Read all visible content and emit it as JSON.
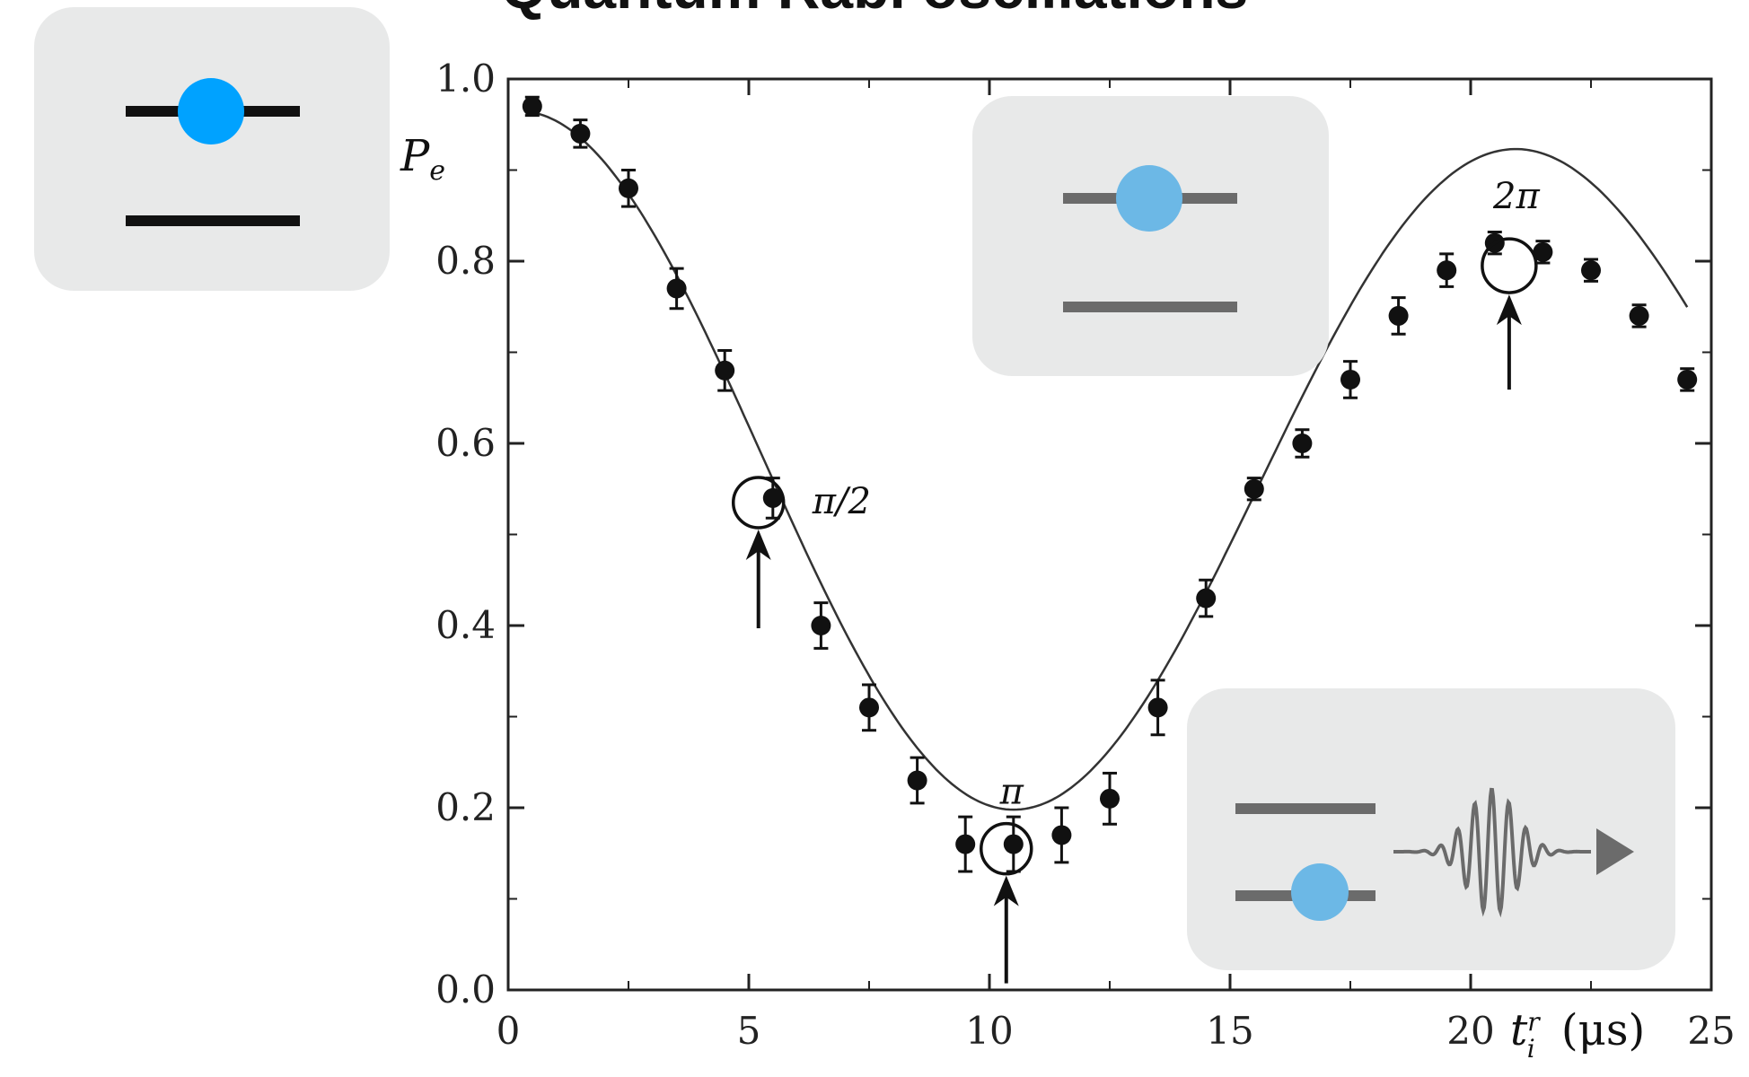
{
  "chart_data": {
    "type": "scatter",
    "title": "Quantum Rabi oscillations",
    "ylabel_main": "P",
    "ylabel_sub": "e",
    "xlabel_main": "t",
    "xlabel_sub": "i",
    "xlabel_sup": "r",
    "xlabel_unit": "(μs)",
    "xlim": [
      0,
      25
    ],
    "ylim": [
      0,
      1.0
    ],
    "x_ticks": [
      0,
      5,
      10,
      15,
      20,
      25
    ],
    "x_tick_labels": [
      "0",
      "5",
      "10",
      "15",
      "20",
      "25"
    ],
    "y_ticks": [
      0.0,
      0.2,
      0.4,
      0.6,
      0.8,
      1.0
    ],
    "y_tick_labels": [
      "0.0",
      "0.2",
      "0.4",
      "0.6",
      "0.8",
      "1.0"
    ],
    "series": [
      {
        "points": [
          {
            "x": 0.5,
            "y": 0.97,
            "err": 0.01
          },
          {
            "x": 1.5,
            "y": 0.94,
            "err": 0.015
          },
          {
            "x": 2.5,
            "y": 0.88,
            "err": 0.02
          },
          {
            "x": 3.5,
            "y": 0.77,
            "err": 0.022
          },
          {
            "x": 4.5,
            "y": 0.68,
            "err": 0.022
          },
          {
            "x": 5.5,
            "y": 0.54,
            "err": 0.022
          },
          {
            "x": 6.5,
            "y": 0.4,
            "err": 0.025
          },
          {
            "x": 7.5,
            "y": 0.31,
            "err": 0.025
          },
          {
            "x": 8.5,
            "y": 0.23,
            "err": 0.025
          },
          {
            "x": 9.5,
            "y": 0.16,
            "err": 0.03
          },
          {
            "x": 10.5,
            "y": 0.16,
            "err": 0.03
          },
          {
            "x": 11.5,
            "y": 0.17,
            "err": 0.03
          },
          {
            "x": 12.5,
            "y": 0.21,
            "err": 0.028
          },
          {
            "x": 13.5,
            "y": 0.31,
            "err": 0.03
          },
          {
            "x": 14.5,
            "y": 0.43,
            "err": 0.02
          },
          {
            "x": 15.5,
            "y": 0.55,
            "err": 0.012
          },
          {
            "x": 16.5,
            "y": 0.6,
            "err": 0.015
          },
          {
            "x": 17.5,
            "y": 0.67,
            "err": 0.02
          },
          {
            "x": 18.5,
            "y": 0.74,
            "err": 0.02
          },
          {
            "x": 19.5,
            "y": 0.79,
            "err": 0.018
          },
          {
            "x": 20.5,
            "y": 0.82,
            "err": 0.012
          },
          {
            "x": 21.5,
            "y": 0.81,
            "err": 0.012
          },
          {
            "x": 22.5,
            "y": 0.79,
            "err": 0.012
          },
          {
            "x": 23.5,
            "y": 0.74,
            "err": 0.012
          },
          {
            "x": 24.5,
            "y": 0.67,
            "err": 0.012
          }
        ]
      }
    ],
    "fit_curve": "damped cosine",
    "annotations": [
      {
        "label": "π/2",
        "x": 5.2,
        "y": 0.535
      },
      {
        "label": "π",
        "x": 10.35,
        "y": 0.155
      },
      {
        "label": "2π",
        "x": 20.8,
        "y": 0.795
      }
    ],
    "grid": false
  },
  "insets": [
    {
      "name": "excited-state",
      "dot_color": "#00a2ff",
      "line_color": "#111111"
    },
    {
      "name": "superposition-state",
      "dot_color": "#6cb8e6",
      "line_color": "#6b6b6b"
    },
    {
      "name": "ground-state-emission",
      "dot_color": "#6cb8e6",
      "line_color": "#6b6b6b"
    }
  ]
}
